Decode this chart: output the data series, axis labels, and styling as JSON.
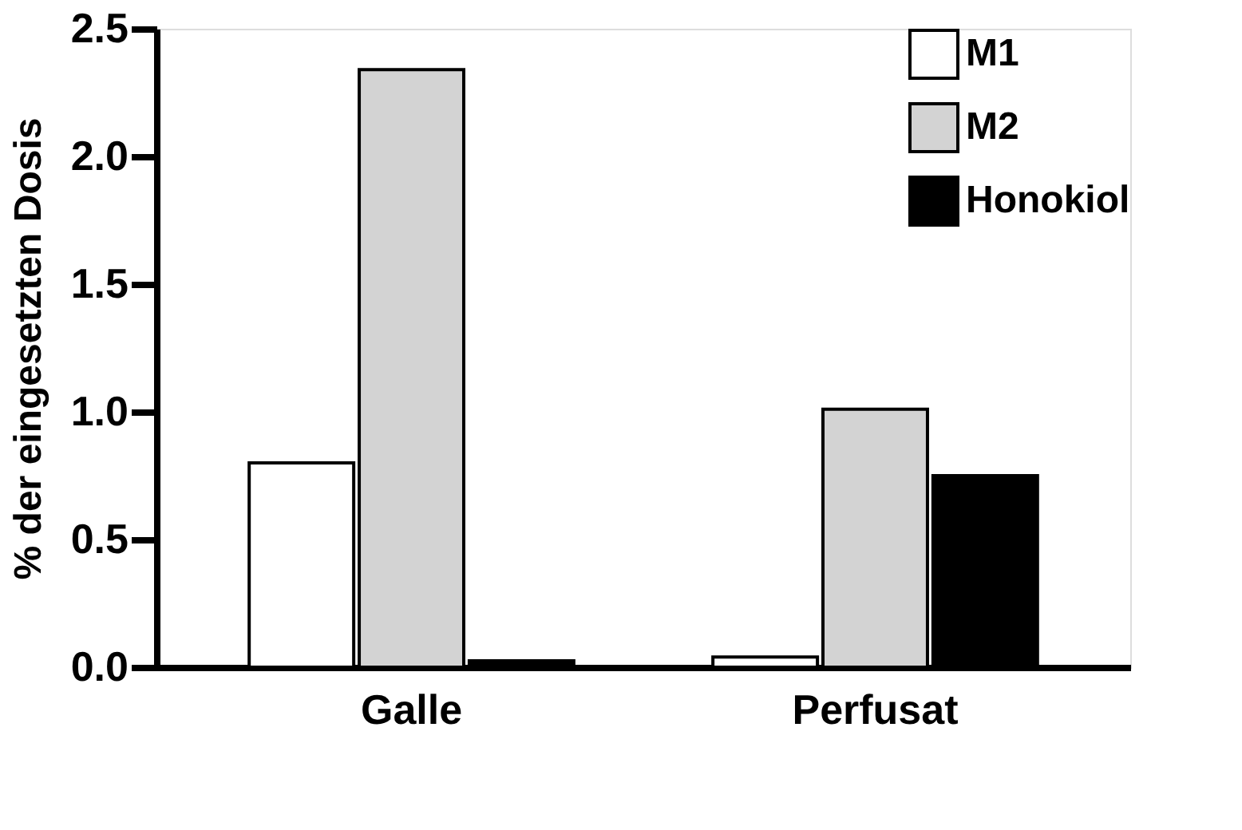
{
  "chart_data": {
    "type": "bar",
    "ylabel": "% der eingesetzten Dosis",
    "categories": [
      "Galle",
      "Perfusat"
    ],
    "series": [
      {
        "name": "M1",
        "color": "#ffffff",
        "values": [
          0.8,
          0.04
        ]
      },
      {
        "name": "M2",
        "color": "#d3d3d3",
        "values": [
          2.34,
          1.01
        ]
      },
      {
        "name": "Honokiol",
        "color": "#000000",
        "values": [
          0.025,
          0.75
        ]
      }
    ],
    "ylim": [
      0,
      2.5
    ],
    "yticks": [
      {
        "value": 0,
        "label": "0.0"
      },
      {
        "value": 0.5,
        "label": "0.5"
      },
      {
        "value": 1,
        "label": "1.0"
      },
      {
        "value": 1.5,
        "label": "1.5"
      },
      {
        "value": 2,
        "label": "2.0"
      },
      {
        "value": 2.5,
        "label": "2.5"
      }
    ],
    "grid": false,
    "legend": "top right"
  }
}
